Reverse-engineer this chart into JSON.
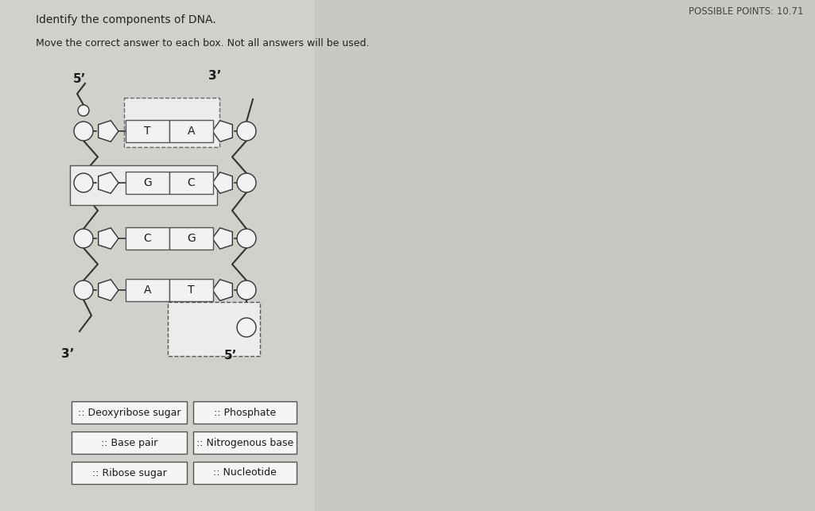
{
  "title": "Identify the components of DNA.",
  "subtitle": "Move the correct answer to each box. Not all answers will be used.",
  "possible_points": "POSSIBLE POINTS: 10.71",
  "bg_color_left": "#cfd0c8",
  "bg_color": "#c8c9c2",
  "left_label_5prime": "5’",
  "left_label_3prime": "3’",
  "right_label_3prime": "3’",
  "right_label_5prime": "5’",
  "base_pairs": [
    {
      "left": "T",
      "right": "A",
      "left_arrow": true,
      "right_arrow": false
    },
    {
      "left": "G",
      "right": "C",
      "left_arrow": false,
      "right_arrow": true
    },
    {
      "left": "C",
      "right": "G",
      "left_arrow": false,
      "right_arrow": false
    },
    {
      "left": "A",
      "right": "T",
      "left_arrow": false,
      "right_arrow": true
    }
  ],
  "answer_boxes": [
    {
      "text": ":: Deoxyribose sugar",
      "col": 0,
      "row": 0
    },
    {
      "text": ":: Phosphate",
      "col": 1,
      "row": 0
    },
    {
      "text": ":: Base pair",
      "col": 0,
      "row": 1
    },
    {
      "text": ":: Nitrogenous base",
      "col": 1,
      "row": 1
    },
    {
      "text": ":: Ribose sugar",
      "col": 0,
      "row": 2
    },
    {
      "text": ":: Nucleotide",
      "col": 1,
      "row": 2
    }
  ],
  "box_fill": "#f2f2f2",
  "box_border": "#555555",
  "text_color": "#1a1a1a",
  "strand_color": "#333333",
  "pentagon_fill": "#f2f2f2",
  "pentagon_border": "#333333",
  "circle_fill": "#f2f2f2",
  "circle_border": "#333333"
}
